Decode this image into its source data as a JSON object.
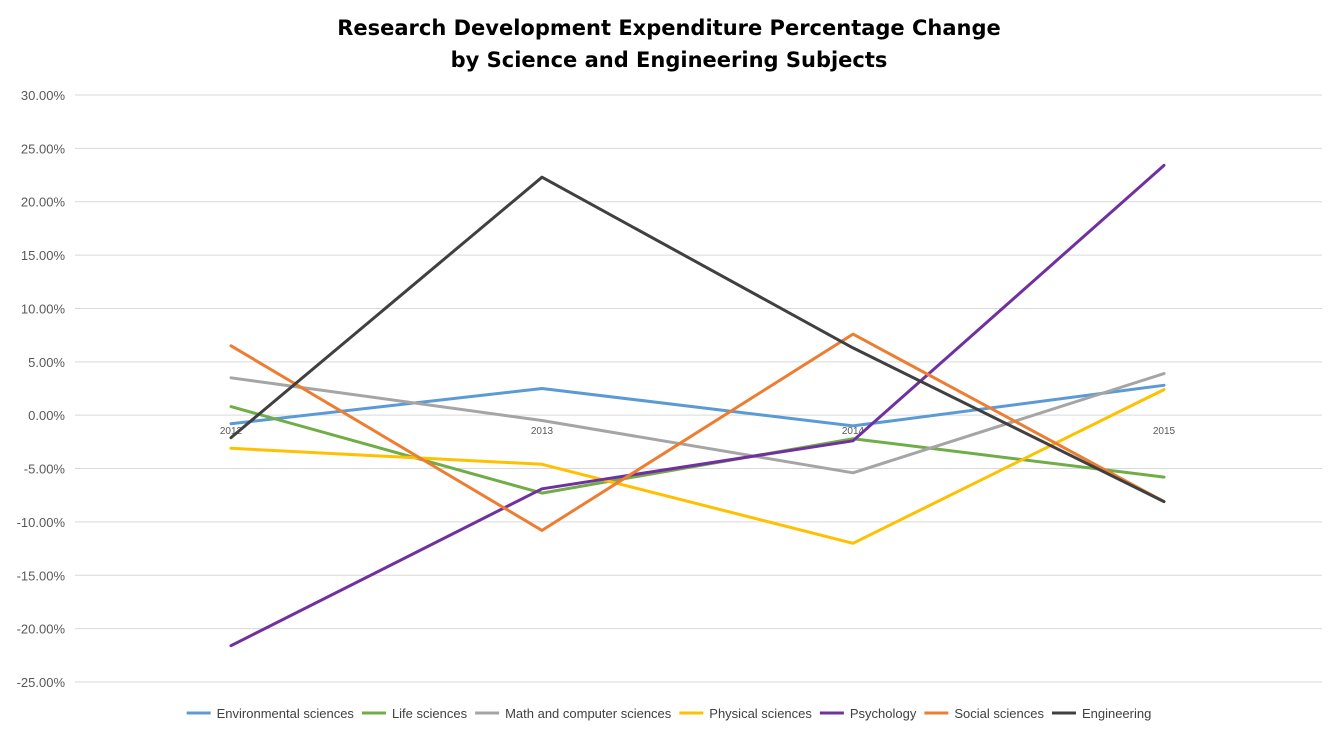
{
  "chart_data": {
    "type": "line",
    "title_line1": "Research Development Expenditure Percentage Change",
    "title_line2": "by Science and Engineering Subjects",
    "x": [
      "2012",
      "2013",
      "2014",
      "2015"
    ],
    "ylim": [
      -0.25,
      0.3
    ],
    "yticks": [
      0.3,
      0.25,
      0.2,
      0.15,
      0.1,
      0.05,
      0.0,
      -0.05,
      -0.1,
      -0.15,
      -0.2,
      -0.25
    ],
    "ytick_labels": [
      "30.00%",
      "25.00%",
      "20.00%",
      "15.00%",
      "10.00%",
      "5.00%",
      "0.00%",
      "-5.00%",
      "-10.00%",
      "-15.00%",
      "-20.00%",
      "-25.00%"
    ],
    "grid": true,
    "legend_position": "bottom",
    "series": [
      {
        "name": "Environmental sciences",
        "color": "#5b9bd5",
        "values": [
          -0.008,
          0.025,
          -0.01,
          0.028
        ]
      },
      {
        "name": "Life sciences",
        "color": "#70ad47",
        "values": [
          0.008,
          -0.073,
          -0.022,
          -0.058
        ]
      },
      {
        "name": "Math and computer sciences",
        "color": "#a5a5a5",
        "values": [
          0.035,
          -0.005,
          -0.054,
          0.039
        ]
      },
      {
        "name": "Physical sciences",
        "color": "#ffc000",
        "values": [
          -0.031,
          -0.046,
          -0.12,
          0.024
        ]
      },
      {
        "name": "Psychology",
        "color": "#7030a0",
        "values": [
          -0.216,
          -0.069,
          -0.024,
          0.234
        ]
      },
      {
        "name": "Social sciences",
        "color": "#ed7d31",
        "values": [
          0.065,
          -0.108,
          0.076,
          -0.081
        ]
      },
      {
        "name": "Engineering",
        "color": "#404040",
        "values": [
          -0.021,
          0.223,
          0.063,
          -0.081
        ]
      }
    ]
  }
}
